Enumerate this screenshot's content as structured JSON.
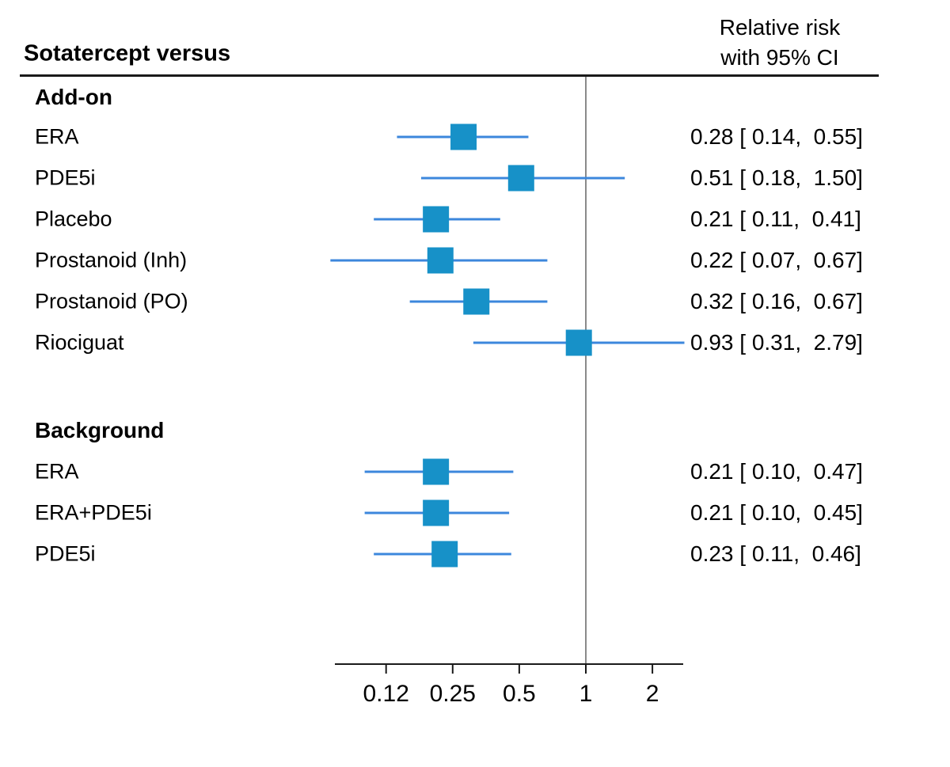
{
  "title": "Sotatercept versus",
  "column_header": {
    "line1": "Relative risk",
    "line2": "with 95% CI"
  },
  "axis": {
    "scale": "log2",
    "tick_values": [
      0.125,
      0.25,
      0.5,
      1,
      2
    ],
    "tick_labels": [
      "0.12",
      "0.25",
      "0.5",
      "1",
      "2"
    ],
    "reference_value": 1,
    "range": [
      0.07,
      2.79
    ]
  },
  "colors": {
    "marker": "#1791c8",
    "ci_line": "#3c87dc",
    "reference_line": "#8a8a8a",
    "rule": "#1a1a1a",
    "text": "#000000"
  },
  "chart_data": {
    "type": "forest",
    "effect_measure": "Relative risk",
    "title": "Sotatercept versus",
    "legend": "Relative risk with 95% CI",
    "x_ticks": [
      "0.12",
      "0.25",
      "0.5",
      "1",
      "2"
    ],
    "groups": [
      {
        "label": "Add-on",
        "rows": [
          {
            "label": "ERA",
            "est": 0.28,
            "lo": 0.14,
            "hi": 0.55,
            "display": "0.28 [ 0.14,  0.55]"
          },
          {
            "label": "PDE5i",
            "est": 0.51,
            "lo": 0.18,
            "hi": 1.5,
            "display": "0.51 [ 0.18,  1.50]"
          },
          {
            "label": "Placebo",
            "est": 0.21,
            "lo": 0.11,
            "hi": 0.41,
            "display": "0.21 [ 0.11,  0.41]"
          },
          {
            "label": "Prostanoid (Inh)",
            "est": 0.22,
            "lo": 0.07,
            "hi": 0.67,
            "display": "0.22 [ 0.07,  0.67]"
          },
          {
            "label": "Prostanoid (PO)",
            "est": 0.32,
            "lo": 0.16,
            "hi": 0.67,
            "display": "0.32 [ 0.16,  0.67]"
          },
          {
            "label": "Riociguat",
            "est": 0.93,
            "lo": 0.31,
            "hi": 2.79,
            "display": "0.93 [ 0.31,  2.79]"
          }
        ]
      },
      {
        "label": "Background",
        "rows": [
          {
            "label": "ERA",
            "est": 0.21,
            "lo": 0.1,
            "hi": 0.47,
            "display": "0.21 [ 0.10,  0.47]"
          },
          {
            "label": "ERA+PDE5i",
            "est": 0.21,
            "lo": 0.1,
            "hi": 0.45,
            "display": "0.21 [ 0.10,  0.45]"
          },
          {
            "label": "PDE5i",
            "est": 0.23,
            "lo": 0.11,
            "hi": 0.46,
            "display": "0.23 [ 0.11,  0.46]"
          }
        ]
      }
    ]
  }
}
